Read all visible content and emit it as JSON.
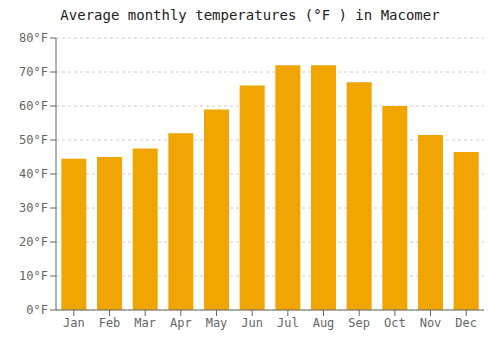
{
  "chart_data": {
    "type": "bar",
    "title": "Average monthly temperatures (°F ) in Macomer",
    "categories": [
      "Jan",
      "Feb",
      "Mar",
      "Apr",
      "May",
      "Jun",
      "Jul",
      "Aug",
      "Sep",
      "Oct",
      "Nov",
      "Dec"
    ],
    "values": [
      44.5,
      45.0,
      47.5,
      52.0,
      59.0,
      66.0,
      72.0,
      72.0,
      67.0,
      60.0,
      51.5,
      46.5
    ],
    "color": "#F0A500",
    "ylim": [
      0,
      80
    ],
    "yticks": [
      {
        "value": 0,
        "label": "0°F"
      },
      {
        "value": 10,
        "label": "10°F"
      },
      {
        "value": 20,
        "label": "20°F"
      },
      {
        "value": 30,
        "label": "30°F"
      },
      {
        "value": 40,
        "label": "40°F"
      },
      {
        "value": 50,
        "label": "50°F"
      },
      {
        "value": 60,
        "label": "60°F"
      },
      {
        "value": 70,
        "label": "70°F"
      },
      {
        "value": 80,
        "label": "80°F"
      }
    ],
    "grid": true
  }
}
